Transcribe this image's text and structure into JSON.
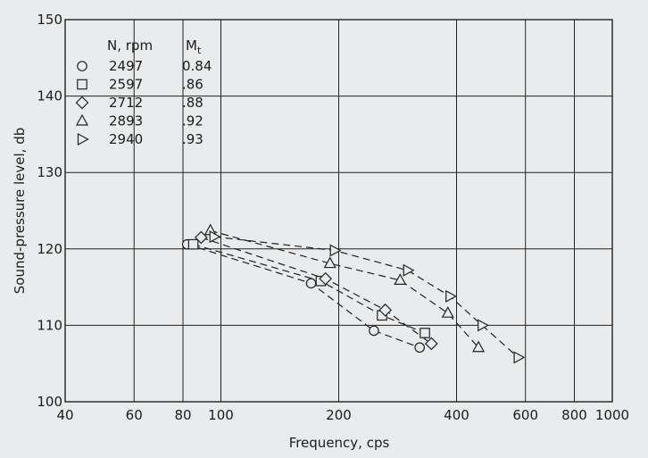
{
  "chart_data": {
    "type": "scatter",
    "title": "",
    "xlabel": "Frequency, cps",
    "ylabel": "Sound-pressure level, db",
    "xscale": "log",
    "xlim": [
      40,
      1000
    ],
    "ylim": [
      100,
      150
    ],
    "grid": true,
    "x_ticks": [
      {
        "value": 40,
        "label": "40"
      },
      {
        "value": 60,
        "label": "60"
      },
      {
        "value": 80,
        "label": "80"
      },
      {
        "value": 100,
        "label": "100"
      },
      {
        "value": 200,
        "label": "200"
      },
      {
        "value": 400,
        "label": "400"
      },
      {
        "value": 600,
        "label": "600"
      },
      {
        "value": 800,
        "label": "800"
      },
      {
        "value": 1000,
        "label": "1000"
      }
    ],
    "y_ticks": [
      {
        "value": 100,
        "label": "100"
      },
      {
        "value": 110,
        "label": "110"
      },
      {
        "value": 120,
        "label": "120"
      },
      {
        "value": 130,
        "label": "130"
      },
      {
        "value": 140,
        "label": "140"
      },
      {
        "value": 150,
        "label": "150"
      }
    ],
    "legend": {
      "placement": "top-left",
      "header_n": "N, rpm",
      "header_m": "Mt",
      "header_m_base": "M",
      "header_m_sub": "t"
    },
    "series": [
      {
        "name": "2497",
        "mt": "0.84",
        "marker": "circle",
        "points": [
          [
            82,
            120.6
          ],
          [
            170,
            115.5
          ],
          [
            246,
            109.3
          ],
          [
            322,
            107.1
          ]
        ]
      },
      {
        "name": "2597",
        "mt": ".86",
        "marker": "square",
        "points": [
          [
            85,
            120.6
          ],
          [
            180,
            115.8
          ],
          [
            258,
            111.3
          ],
          [
            332,
            109.0
          ]
        ]
      },
      {
        "name": "2712",
        "mt": ".88",
        "marker": "diamond",
        "points": [
          [
            89,
            121.5
          ],
          [
            185,
            116.1
          ],
          [
            263,
            112.0
          ],
          [
            345,
            107.6
          ]
        ]
      },
      {
        "name": "2893",
        "mt": ".92",
        "marker": "triangle-up",
        "points": [
          [
            94,
            122.4
          ],
          [
            190,
            118.1
          ],
          [
            287,
            115.9
          ],
          [
            380,
            111.6
          ],
          [
            455,
            107.1
          ]
        ]
      },
      {
        "name": "2940",
        "mt": ".93",
        "marker": "triangle-right",
        "points": [
          [
            96,
            121.6
          ],
          [
            195,
            119.8
          ],
          [
            300,
            117.2
          ],
          [
            385,
            113.8
          ],
          [
            465,
            110.0
          ],
          [
            575,
            105.8
          ]
        ]
      }
    ]
  }
}
